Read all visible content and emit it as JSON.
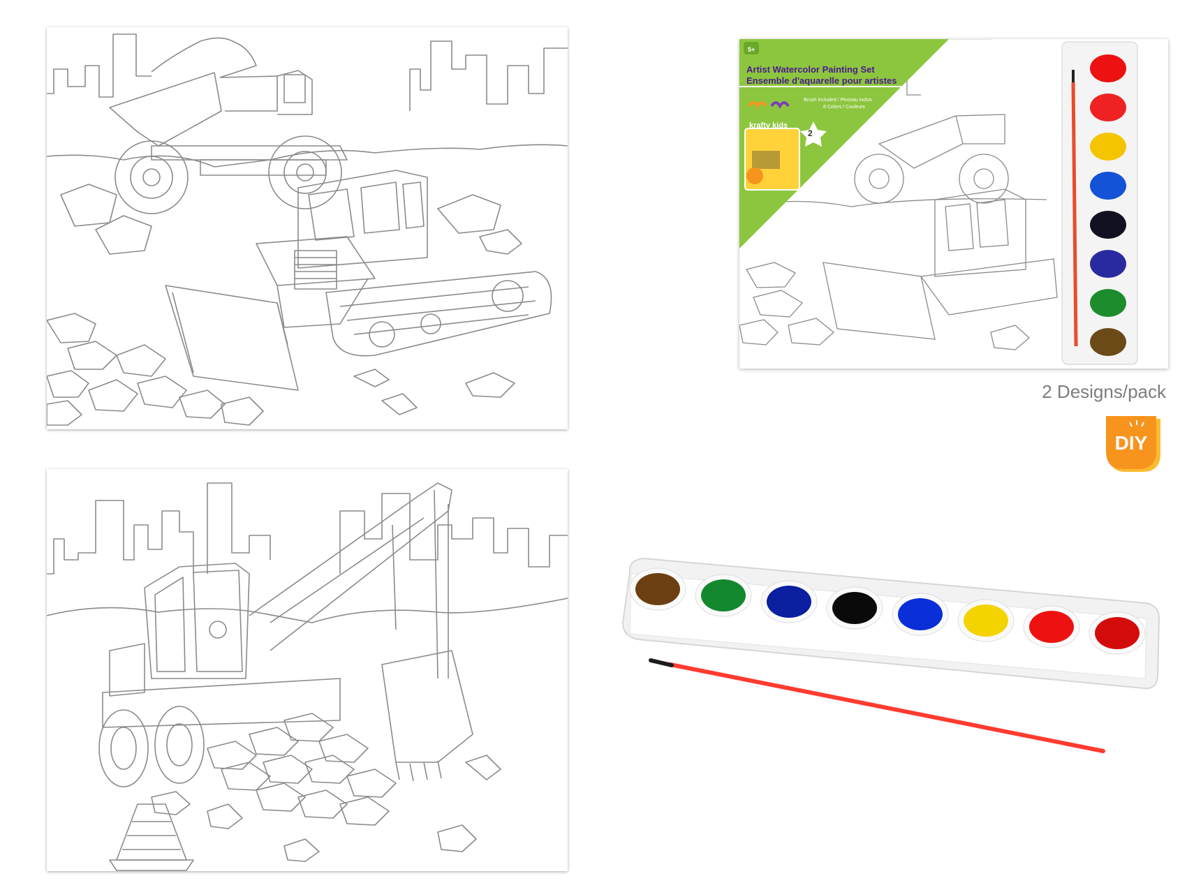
{
  "package": {
    "age_badge": "5+",
    "title_en": "Artist Watercolor Painting Set",
    "title_fr": "Ensemble d'aquarelle pour artistes",
    "subtitle_1": "Brush Included / Pinceau inclus",
    "subtitle_2": "8 Colors / Couleurs",
    "brand": "krafty kids",
    "sheets_count": "2",
    "diy_label": "DIY"
  },
  "designs_note": "2 Designs/pack",
  "diy_badge_label": "DIY",
  "colors": {
    "package_green": "#8cc63f",
    "badge_orange": "#f7941d",
    "badge_yellow": "#fdbb2f",
    "brush_red": "#ff3b2f",
    "line_art": "#8a8a8a"
  },
  "paint_colors": [
    "brown",
    "green",
    "blue",
    "black",
    "blue",
    "yellow",
    "red",
    "red"
  ],
  "paint_hex": [
    "#6b3f12",
    "#14882e",
    "#0b1fa0",
    "#0a0a0a",
    "#0a2fd8",
    "#f4d400",
    "#ee1111",
    "#d40b0b"
  ],
  "package_paint_hex": [
    "#ee1111",
    "#ee2222",
    "#f4c400",
    "#1452d8",
    "#111122",
    "#2a2aa0",
    "#1c8c2c",
    "#6b4a18"
  ],
  "sheets": [
    {
      "design": "dump-truck-and-bulldozer"
    },
    {
      "design": "excavator"
    }
  ]
}
